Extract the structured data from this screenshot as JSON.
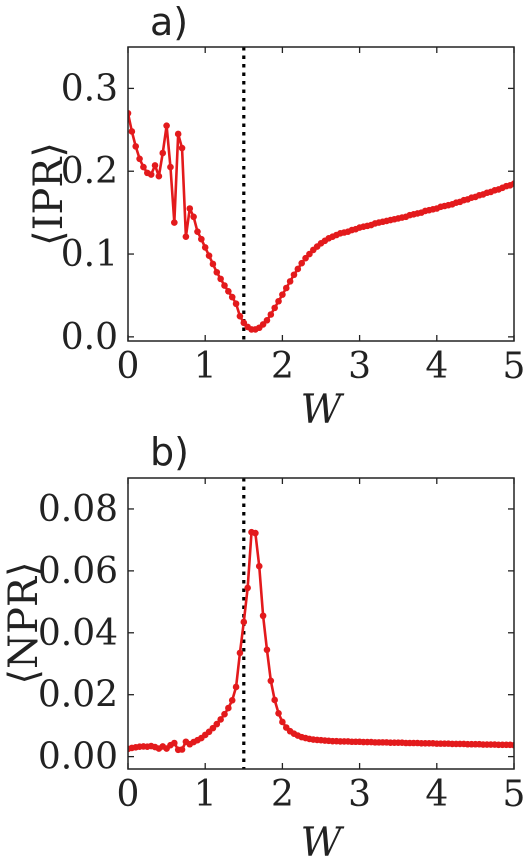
{
  "colors": {
    "series": "#e31a1c",
    "axis": "#222222",
    "threshold": "#000000"
  },
  "chart_data": [
    {
      "type": "line",
      "panel_label": "a)",
      "xlabel": "W",
      "ylabel": "⟨IPR⟩",
      "xlim": [
        0,
        5
      ],
      "ylim": [
        -0.005,
        0.35
      ],
      "xticks": [
        "0",
        "1",
        "2",
        "3",
        "4",
        "5"
      ],
      "yticks": [
        "0.0",
        "0.1",
        "0.2",
        "0.3"
      ],
      "ytick_values": [
        0.0,
        0.1,
        0.2,
        0.3
      ],
      "xtick_values": [
        0,
        1,
        2,
        3,
        4,
        5
      ],
      "threshold_x": 1.5,
      "grid": false,
      "series": [
        {
          "x": [
            0.0,
            0.05,
            0.1,
            0.15,
            0.2,
            0.25,
            0.3,
            0.35,
            0.4,
            0.45,
            0.5,
            0.55,
            0.6,
            0.65,
            0.7,
            0.75,
            0.8,
            0.85,
            0.9,
            0.95,
            1.0,
            1.05,
            1.1,
            1.15,
            1.2,
            1.25,
            1.3,
            1.35,
            1.4,
            1.45,
            1.5,
            1.55,
            1.6,
            1.65,
            1.7,
            1.75,
            1.8,
            1.85,
            1.9,
            1.95,
            2.0,
            2.05,
            2.1,
            2.15,
            2.2,
            2.25,
            2.3,
            2.35,
            2.4,
            2.45,
            2.5,
            2.55,
            2.6,
            2.65,
            2.7,
            2.75,
            2.8,
            2.85,
            2.9,
            2.95,
            3.0,
            3.05,
            3.1,
            3.15,
            3.2,
            3.25,
            3.3,
            3.35,
            3.4,
            3.45,
            3.5,
            3.55,
            3.6,
            3.65,
            3.7,
            3.75,
            3.8,
            3.85,
            3.9,
            3.95,
            4.0,
            4.05,
            4.1,
            4.15,
            4.2,
            4.25,
            4.3,
            4.35,
            4.4,
            4.45,
            4.5,
            4.55,
            4.6,
            4.65,
            4.7,
            4.75,
            4.8,
            4.85,
            4.9,
            4.95,
            5.0
          ],
          "y": [
            0.27,
            0.248,
            0.23,
            0.215,
            0.205,
            0.198,
            0.196,
            0.207,
            0.194,
            0.222,
            0.255,
            0.205,
            0.138,
            0.245,
            0.228,
            0.121,
            0.155,
            0.145,
            0.127,
            0.118,
            0.108,
            0.098,
            0.088,
            0.078,
            0.07,
            0.062,
            0.055,
            0.048,
            0.04,
            0.025,
            0.017,
            0.012,
            0.009,
            0.009,
            0.011,
            0.015,
            0.02,
            0.027,
            0.035,
            0.043,
            0.051,
            0.059,
            0.067,
            0.075,
            0.082,
            0.089,
            0.095,
            0.1,
            0.105,
            0.109,
            0.113,
            0.116,
            0.119,
            0.121,
            0.123,
            0.125,
            0.126,
            0.127,
            0.129,
            0.13,
            0.132,
            0.133,
            0.134,
            0.135,
            0.137,
            0.138,
            0.139,
            0.14,
            0.141,
            0.142,
            0.143,
            0.144,
            0.145,
            0.147,
            0.148,
            0.149,
            0.15,
            0.152,
            0.153,
            0.154,
            0.155,
            0.157,
            0.158,
            0.159,
            0.16,
            0.162,
            0.163,
            0.165,
            0.166,
            0.168,
            0.169,
            0.171,
            0.172,
            0.174,
            0.175,
            0.177,
            0.178,
            0.18,
            0.182,
            0.183,
            0.185
          ]
        }
      ]
    },
    {
      "type": "line",
      "panel_label": "b)",
      "xlabel": "W",
      "ylabel": "⟨NPR⟩",
      "xlim": [
        0,
        5
      ],
      "ylim": [
        -0.004,
        0.09
      ],
      "xticks": [
        "0",
        "1",
        "2",
        "3",
        "4",
        "5"
      ],
      "yticks": [
        "0.00",
        "0.02",
        "0.04",
        "0.06",
        "0.08"
      ],
      "ytick_values": [
        0.0,
        0.02,
        0.04,
        0.06,
        0.08
      ],
      "xtick_values": [
        0,
        1,
        2,
        3,
        4,
        5
      ],
      "threshold_x": 1.5,
      "grid": false,
      "series": [
        {
          "x": [
            0.0,
            0.05,
            0.1,
            0.15,
            0.2,
            0.25,
            0.3,
            0.35,
            0.4,
            0.45,
            0.5,
            0.55,
            0.6,
            0.65,
            0.7,
            0.75,
            0.8,
            0.85,
            0.9,
            0.95,
            1.0,
            1.05,
            1.1,
            1.15,
            1.2,
            1.25,
            1.3,
            1.35,
            1.4,
            1.45,
            1.5,
            1.55,
            1.6,
            1.65,
            1.7,
            1.75,
            1.8,
            1.85,
            1.9,
            1.95,
            2.0,
            2.05,
            2.1,
            2.15,
            2.2,
            2.25,
            2.3,
            2.35,
            2.4,
            2.45,
            2.5,
            2.55,
            2.6,
            2.65,
            2.7,
            2.75,
            2.8,
            2.85,
            2.9,
            2.95,
            3.0,
            3.05,
            3.1,
            3.15,
            3.2,
            3.25,
            3.3,
            3.35,
            3.4,
            3.45,
            3.5,
            3.55,
            3.6,
            3.65,
            3.7,
            3.75,
            3.8,
            3.85,
            3.9,
            3.95,
            4.0,
            4.05,
            4.1,
            4.15,
            4.2,
            4.25,
            4.3,
            4.35,
            4.4,
            4.45,
            4.5,
            4.55,
            4.6,
            4.65,
            4.7,
            4.75,
            4.8,
            4.85,
            4.9,
            4.95,
            5.0
          ],
          "y": [
            0.0025,
            0.0028,
            0.003,
            0.0032,
            0.0033,
            0.0032,
            0.0034,
            0.0031,
            0.0026,
            0.0033,
            0.0026,
            0.0037,
            0.0044,
            0.0022,
            0.0023,
            0.0048,
            0.004,
            0.0047,
            0.0053,
            0.006,
            0.007,
            0.008,
            0.0092,
            0.0105,
            0.012,
            0.0137,
            0.0157,
            0.0182,
            0.0225,
            0.0335,
            0.0435,
            0.0545,
            0.0725,
            0.0722,
            0.0615,
            0.0455,
            0.0345,
            0.0245,
            0.0183,
            0.014,
            0.0112,
            0.0094,
            0.0082,
            0.0074,
            0.0068,
            0.0063,
            0.006,
            0.0057,
            0.0055,
            0.0054,
            0.0053,
            0.0052,
            0.0051,
            0.005,
            0.005,
            0.0049,
            0.0049,
            0.0049,
            0.0048,
            0.0048,
            0.0048,
            0.0047,
            0.0047,
            0.0047,
            0.0046,
            0.0046,
            0.0046,
            0.0046,
            0.0045,
            0.0045,
            0.0045,
            0.0045,
            0.0044,
            0.0044,
            0.0044,
            0.0044,
            0.0043,
            0.0043,
            0.0043,
            0.0043,
            0.0042,
            0.0042,
            0.0042,
            0.0042,
            0.0041,
            0.0041,
            0.0041,
            0.0041,
            0.004,
            0.004,
            0.004,
            0.004,
            0.0039,
            0.0039,
            0.0039,
            0.0039,
            0.0038,
            0.0038,
            0.0038,
            0.0038,
            0.0037
          ]
        }
      ]
    }
  ]
}
